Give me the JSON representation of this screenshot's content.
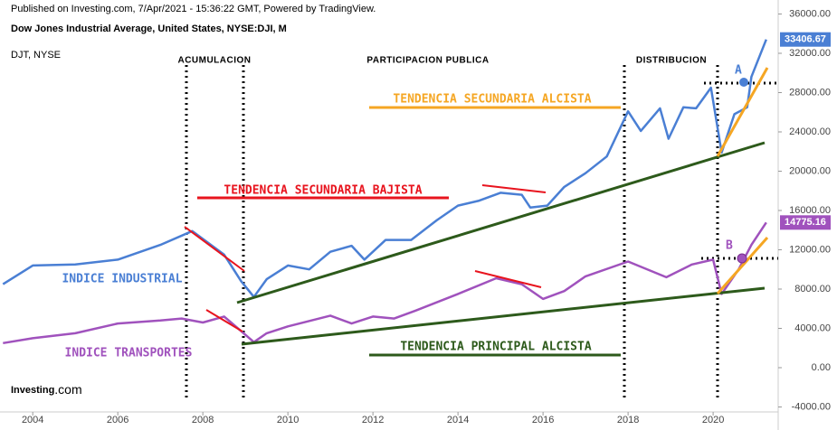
{
  "chart_data": {
    "type": "line",
    "header": "Published on Investing.com, 7/Apr/2021 - 15:36:22 GMT, Powered by TradingView.",
    "title": "Dow Jones Industrial Average, United States, NYSE:DJI, M",
    "subtitle": "DJT, NYSE",
    "logo": "Investing",
    "logo_suffix": ".com",
    "annotations": {
      "phase_1": "ACUMULACION",
      "phase_2": "PARTICIPACION PUBLICA",
      "phase_3": "DISTRIBUCION",
      "secondary_up": "TENDENCIA SECUNDARIA ALCISTA",
      "secondary_down": "TENDENCIA SECUNDARIA BAJISTA",
      "primary_up": "TENDENCIA PRINCIPAL ALCISTA",
      "point_a": "A",
      "point_b": "B"
    },
    "xlim": [
      2003.23,
      2021.53
    ],
    "xticks": [
      2004,
      2006,
      2008,
      2010,
      2012,
      2014,
      2016,
      2018,
      2020
    ],
    "ylim": [
      -4506,
      37425
    ],
    "yticks": [
      {
        "value": 36000,
        "label": "36000.00"
      },
      {
        "value": 32000,
        "label": "32000.00"
      },
      {
        "value": 28000,
        "label": "28000.00"
      },
      {
        "value": 24000,
        "label": "24000.00"
      },
      {
        "value": 20000,
        "label": "20000.00"
      },
      {
        "value": 16000,
        "label": "16000.00"
      },
      {
        "value": 12000,
        "label": "12000.00"
      },
      {
        "value": 8000,
        "label": "8000.00"
      },
      {
        "value": 4000,
        "label": "4000.00"
      },
      {
        "value": 0,
        "label": "0.00"
      },
      {
        "value": -4000,
        "label": "-4000.00"
      }
    ],
    "series": [
      {
        "name": "INDICE INDUSTRIAL",
        "color": "#4a7fd4",
        "x": [
          2003.3,
          2004,
          2005,
          2006,
          2007,
          2007.75,
          2008.5,
          2008.9,
          2009.2,
          2009.5,
          2010,
          2010.5,
          2011,
          2011.5,
          2011.8,
          2012.3,
          2012.9,
          2013.5,
          2014,
          2014.5,
          2015,
          2015.5,
          2015.7,
          2016.1,
          2016.5,
          2017,
          2017.5,
          2018,
          2018.3,
          2018.75,
          2018.95,
          2019.3,
          2019.6,
          2019.95,
          2020.2,
          2020.5,
          2020.8,
          2020.9,
          2021.25
        ],
        "values": [
          8500,
          10400,
          10500,
          11000,
          12500,
          13900,
          11500,
          8800,
          7200,
          9000,
          10400,
          10000,
          11800,
          12400,
          11000,
          13000,
          13000,
          15000,
          16500,
          17000,
          17800,
          17600,
          16300,
          16500,
          18400,
          19800,
          21500,
          26100,
          24100,
          26400,
          23300,
          26500,
          26400,
          28500,
          21900,
          25800,
          26500,
          29600,
          33406.67
        ]
      },
      {
        "name": "INDICE TRANSPORTES",
        "color": "#a052bd",
        "x": [
          2003.3,
          2004,
          2005,
          2006,
          2007,
          2007.5,
          2008,
          2008.5,
          2009.2,
          2009.5,
          2010,
          2011,
          2011.5,
          2012,
          2012.5,
          2013,
          2014,
          2014.9,
          2015.5,
          2016,
          2016.5,
          2017,
          2018,
          2018.9,
          2019.5,
          2020,
          2020.2,
          2020.6,
          2020.9,
          2021.25
        ],
        "values": [
          2500,
          3000,
          3500,
          4500,
          4800,
          5000,
          4600,
          5200,
          2600,
          3500,
          4200,
          5300,
          4500,
          5200,
          5000,
          5800,
          7500,
          9100,
          8500,
          7000,
          7800,
          9300,
          10800,
          9200,
          10500,
          11000,
          7500,
          10000,
          12500,
          14775.16
        ]
      }
    ]
  }
}
